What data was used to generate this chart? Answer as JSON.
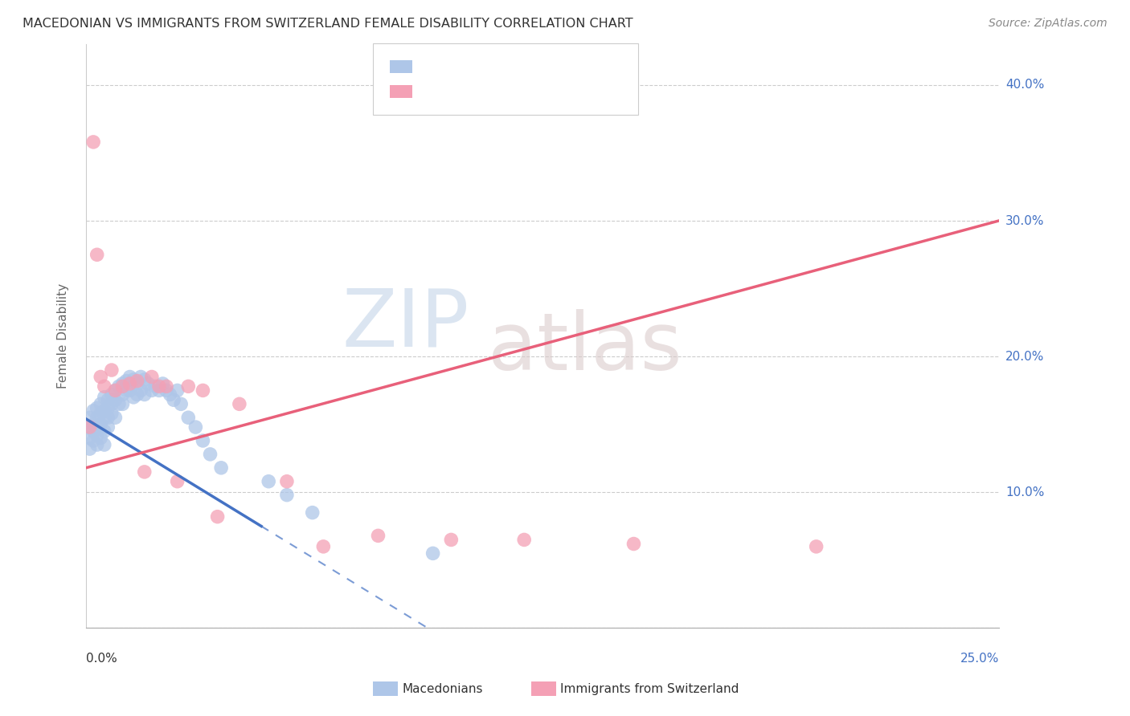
{
  "title": "MACEDONIAN VS IMMIGRANTS FROM SWITZERLAND FEMALE DISABILITY CORRELATION CHART",
  "source": "Source: ZipAtlas.com",
  "ylabel": "Female Disability",
  "yticks": [
    0.0,
    0.1,
    0.2,
    0.3,
    0.4
  ],
  "ytick_labels": [
    "",
    "10.0%",
    "20.0%",
    "30.0%",
    "40.0%"
  ],
  "xlim": [
    0.0,
    0.25
  ],
  "ylim": [
    0.0,
    0.43
  ],
  "color_blue": "#aec6e8",
  "color_pink": "#f4a0b5",
  "line_blue": "#4472c4",
  "line_pink": "#e8607a",
  "line_blue_dashed": "#9ab5d8",
  "watermark_zip": "ZIP",
  "watermark_atlas": "atlas",
  "blue_scatter_x": [
    0.001,
    0.001,
    0.001,
    0.001,
    0.002,
    0.002,
    0.002,
    0.002,
    0.003,
    0.003,
    0.003,
    0.003,
    0.003,
    0.004,
    0.004,
    0.004,
    0.004,
    0.005,
    0.005,
    0.005,
    0.005,
    0.005,
    0.006,
    0.006,
    0.006,
    0.006,
    0.007,
    0.007,
    0.007,
    0.008,
    0.008,
    0.008,
    0.009,
    0.009,
    0.01,
    0.01,
    0.01,
    0.011,
    0.011,
    0.012,
    0.012,
    0.013,
    0.013,
    0.014,
    0.014,
    0.015,
    0.015,
    0.016,
    0.016,
    0.017,
    0.018,
    0.019,
    0.02,
    0.021,
    0.022,
    0.023,
    0.024,
    0.025,
    0.026,
    0.028,
    0.03,
    0.032,
    0.034,
    0.037,
    0.05,
    0.055,
    0.062,
    0.095
  ],
  "blue_scatter_y": [
    0.148,
    0.14,
    0.155,
    0.132,
    0.15,
    0.145,
    0.138,
    0.16,
    0.155,
    0.148,
    0.142,
    0.162,
    0.135,
    0.158,
    0.15,
    0.165,
    0.14,
    0.16,
    0.155,
    0.17,
    0.145,
    0.135,
    0.168,
    0.162,
    0.155,
    0.148,
    0.172,
    0.165,
    0.158,
    0.175,
    0.168,
    0.155,
    0.178,
    0.165,
    0.18,
    0.172,
    0.165,
    0.182,
    0.175,
    0.185,
    0.175,
    0.183,
    0.17,
    0.18,
    0.172,
    0.185,
    0.175,
    0.183,
    0.172,
    0.18,
    0.175,
    0.178,
    0.175,
    0.18,
    0.175,
    0.172,
    0.168,
    0.175,
    0.165,
    0.155,
    0.148,
    0.138,
    0.128,
    0.118,
    0.108,
    0.098,
    0.085,
    0.055
  ],
  "pink_scatter_x": [
    0.001,
    0.002,
    0.003,
    0.004,
    0.005,
    0.007,
    0.008,
    0.01,
    0.012,
    0.014,
    0.016,
    0.018,
    0.02,
    0.022,
    0.025,
    0.028,
    0.032,
    0.036,
    0.042,
    0.055,
    0.065,
    0.08,
    0.1,
    0.12,
    0.15,
    0.2
  ],
  "pink_scatter_y": [
    0.148,
    0.358,
    0.275,
    0.185,
    0.178,
    0.19,
    0.175,
    0.178,
    0.18,
    0.182,
    0.115,
    0.185,
    0.178,
    0.178,
    0.108,
    0.178,
    0.175,
    0.082,
    0.165,
    0.108,
    0.06,
    0.068,
    0.065,
    0.065,
    0.062,
    0.06
  ],
  "blue_line_x0": 0.0,
  "blue_line_y0": 0.154,
  "blue_line_x1": 0.048,
  "blue_line_y1": 0.075,
  "blue_line_solid_end": 0.048,
  "blue_line_dash_end": 0.25,
  "pink_line_x0": 0.0,
  "pink_line_y0": 0.118,
  "pink_line_x1": 0.25,
  "pink_line_y1": 0.3
}
